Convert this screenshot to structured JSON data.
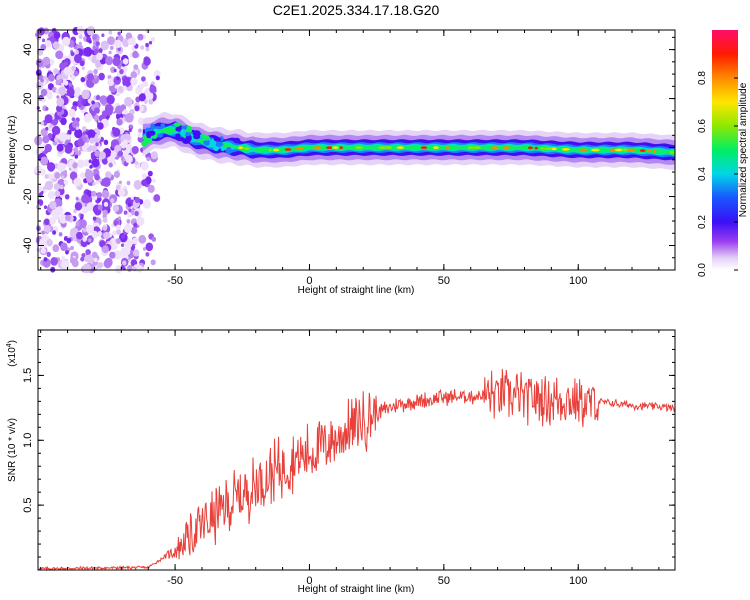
{
  "title": "C2E1.2025.334.17.18.G20",
  "chart_data": [
    {
      "type": "heatmap",
      "name": "spectrogram",
      "xlabel": "Height of straight line (km)",
      "ylabel": "Frequency (Hz)",
      "xlim": [
        -101,
        136
      ],
      "ylim": [
        -50,
        48
      ],
      "xticks": [
        -50,
        0,
        50,
        100
      ],
      "yticks": [
        -40,
        -20,
        0,
        20,
        40
      ],
      "colorbar": {
        "label": "Normalized spectral amplitude",
        "range": [
          0,
          1
        ],
        "ticks": [
          "0.0",
          "0.2",
          "0.4",
          "0.6",
          "0.8"
        ]
      },
      "ridge": {
        "x": [
          -62,
          -58,
          -54,
          -50,
          -46,
          -42,
          -38,
          -34,
          -30,
          -26,
          -20,
          -10,
          0,
          10,
          20,
          40,
          60,
          80,
          100,
          120,
          136
        ],
        "y": [
          4,
          6,
          7,
          7,
          5,
          3,
          2,
          1,
          0.5,
          0,
          -1,
          -1,
          0,
          0,
          0,
          0,
          0,
          0,
          -1,
          -1,
          -2
        ]
      },
      "noise_region_xlim": [
        -101,
        -55
      ]
    },
    {
      "type": "line",
      "name": "snr",
      "xlabel": "Height of straight line (km)",
      "ylabel": "SNR (10 * v/v)",
      "multiplier": "(x10",
      "multiplier_exp": "4",
      "multiplier_close": ")",
      "xlim": [
        -101,
        136
      ],
      "ylim": [
        0,
        18500
      ],
      "xticks": [
        -50,
        0,
        50,
        100
      ],
      "yticks": [
        5000,
        10000,
        15000
      ],
      "ytick_labels": [
        "0.5",
        "1.0",
        "1.5"
      ],
      "line_color": "#e8403a",
      "trend": {
        "x": [
          -101,
          -60,
          -50,
          -40,
          -30,
          -20,
          -10,
          0,
          10,
          20,
          30,
          40,
          50,
          60,
          70,
          80,
          90,
          100,
          110,
          120,
          136
        ],
        "y": [
          100,
          200,
          1500,
          3500,
          5000,
          6500,
          8000,
          9000,
          10200,
          11500,
          12600,
          13000,
          13300,
          13400,
          13500,
          13300,
          13200,
          13000,
          12900,
          12700,
          12500
        ]
      }
    }
  ]
}
